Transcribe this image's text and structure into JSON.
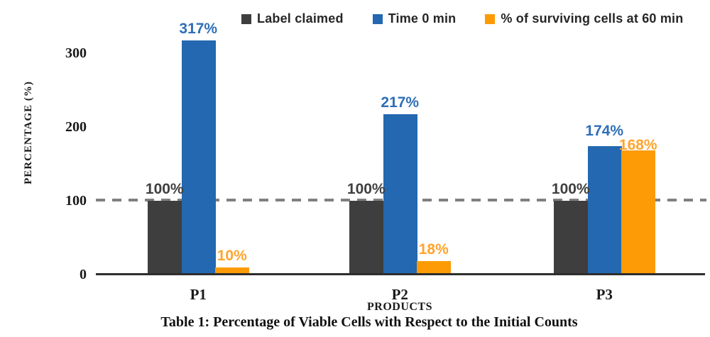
{
  "legend": {
    "items": [
      {
        "name": "label-claimed",
        "label": "Label claimed",
        "color": "#3E3E3E"
      },
      {
        "name": "time-0-min",
        "label": "Time 0 min",
        "color": "#2368B0"
      },
      {
        "name": "surviving-cells-60-min",
        "label": "% of surviving cells at 60 min",
        "color": "#FC9B06"
      }
    ]
  },
  "axes": {
    "y_title": "PERCENTAGE (%)",
    "x_title": "PRODUCTS"
  },
  "caption": "Table 1: Percentage of Viable Cells with Respect to the Initial Counts",
  "chart_data": {
    "type": "bar",
    "title": "",
    "categories": [
      "P1",
      "P2",
      "P3"
    ],
    "series": [
      {
        "name": "Label claimed",
        "color": "#3E3E3E",
        "label_color": "#3F3F3F",
        "values": [
          100,
          100,
          100
        ],
        "labels": [
          "100%",
          "100%",
          "100%"
        ]
      },
      {
        "name": "Time 0 min",
        "color": "#2368B0",
        "label_color": "#2E6FB7",
        "values": [
          317,
          217,
          174
        ],
        "labels": [
          "317%",
          "217%",
          "174%"
        ]
      },
      {
        "name": "% of surviving cells at 60 min",
        "color": "#FC9B06",
        "label_color": "#FFA42C",
        "values": [
          10,
          18,
          168
        ],
        "labels": [
          "10%",
          "18%",
          "168%"
        ]
      }
    ],
    "xlabel": "PRODUCTS",
    "ylabel": "PERCENTAGE (%)",
    "ylim": [
      0,
      340
    ],
    "y_ticks": [
      0,
      100,
      200,
      300
    ],
    "reference_line": {
      "value": 100,
      "style": "dashed",
      "color": "#808080"
    },
    "legend_position": "top",
    "grid": false
  }
}
